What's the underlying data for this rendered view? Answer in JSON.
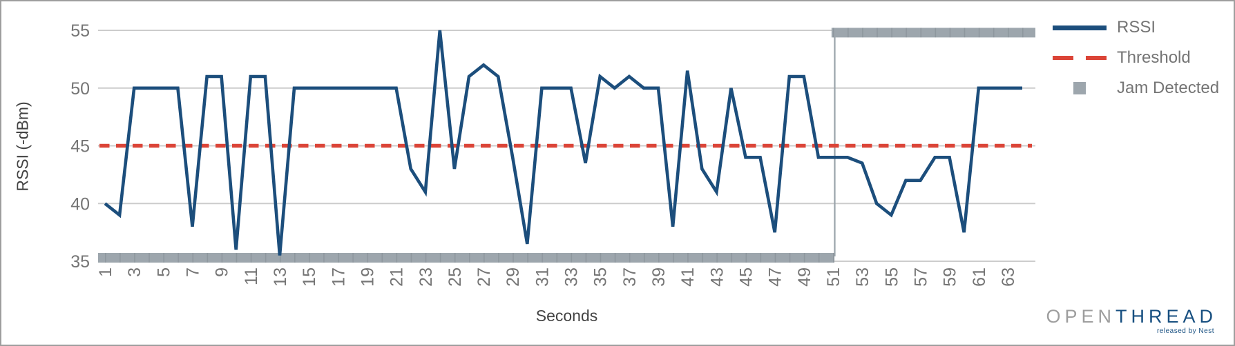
{
  "chart_data": {
    "type": "line",
    "title": "",
    "xlabel": "Seconds",
    "ylabel": "RSSI (-dBm)",
    "x_range": [
      1,
      64
    ],
    "ylim": [
      35,
      55
    ],
    "y_ticks": [
      35,
      40,
      45,
      50,
      55
    ],
    "x_tick_labels": [
      1,
      3,
      5,
      7,
      9,
      11,
      13,
      15,
      17,
      19,
      21,
      23,
      25,
      27,
      29,
      31,
      33,
      35,
      37,
      39,
      41,
      43,
      45,
      47,
      49,
      51,
      53,
      55,
      57,
      59,
      61,
      63
    ],
    "grid": true,
    "legend_position": "right",
    "series": [
      {
        "name": "RSSI",
        "type": "line",
        "color": "#1C4E7C",
        "x_start": 1,
        "values": [
          40,
          39,
          50,
          50,
          50,
          50,
          38,
          51,
          51,
          36,
          51,
          51,
          35.5,
          50,
          50,
          50,
          50,
          50,
          50,
          50,
          50,
          43,
          41,
          55,
          43,
          51,
          52,
          51,
          44,
          36.5,
          50,
          50,
          50,
          43.5,
          51,
          50,
          51,
          50,
          50,
          38,
          51.5,
          43,
          41,
          50,
          44,
          44,
          37.5,
          51,
          51,
          44,
          44,
          44,
          43.5,
          40,
          39,
          42,
          42,
          44,
          44,
          37.5,
          50,
          50,
          50,
          50
        ]
      },
      {
        "name": "Threshold",
        "type": "dashed_line",
        "color": "#DB4437",
        "value": 45
      },
      {
        "name": "Jam Detected",
        "type": "band",
        "color": "#9DA6AD",
        "transition_at_s": 51,
        "segments": [
          {
            "from_s": 0.5,
            "to_s": 51.1,
            "level": 35.3
          },
          {
            "from_s": 50.9,
            "to_s": 64.95,
            "level": 54.8
          }
        ]
      }
    ],
    "colors": {
      "gridline": "#CCCCCC",
      "tick_text": "#757575",
      "axis_title_text": "#424242"
    }
  },
  "legend": {
    "items": [
      {
        "label": "RSSI",
        "swatch": "line",
        "color": "#1C4E7C"
      },
      {
        "label": "Threshold",
        "swatch": "dashed-line",
        "color": "#DB4437"
      },
      {
        "label": "Jam Detected",
        "swatch": "square",
        "color": "#9DA6AD"
      }
    ]
  },
  "branding": {
    "brand_open": "OPEN",
    "brand_thread": "THREAD",
    "tagline": "released by Nest"
  }
}
